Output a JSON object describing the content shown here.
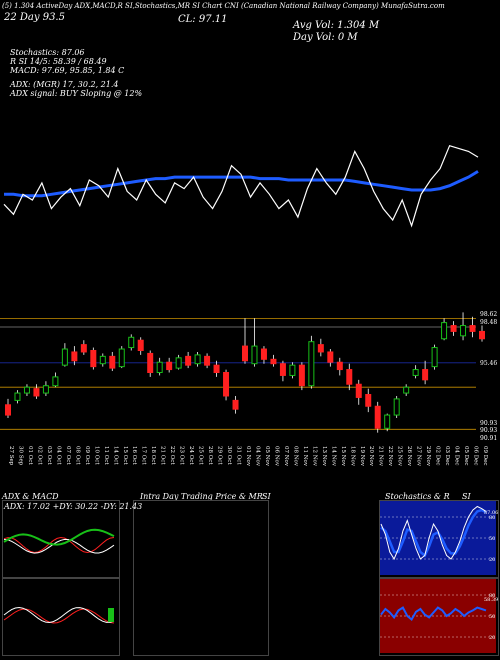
{
  "header": {
    "top_line": "(5) 1.304 ActiveDay ADX,MACD,R    SI,Stochastics,MR    SI Chart CNI    (Canadian National Railway Company) MunafaSutra.com",
    "left_row1": "22 Day  93.5",
    "cl_label": "CL: 97.11",
    "avg_vol": "Avg Vol: 1.304  M",
    "day_vol": "Day Vol: 0  M",
    "stochastics": "Stochastics: 87.06",
    "r_line": "R                      SI 14/5: 58.39 / 68.49",
    "macd": "MACD: 97.69, 95.85, 1.84  C",
    "adx": "ADX:                          (MGR) 17, 30.2, 21.4",
    "adx_signal": "ADX  signal:                                 BUY Sloping @ 12%"
  },
  "colors": {
    "background": "#000000",
    "white": "#ffffff",
    "blue": "#1e5cff",
    "red": "#ff2020",
    "green": "#18c018",
    "orange_line": "#c89000",
    "blue_line_h": "#1a2aa0",
    "white_line_h": "#c8c8c8"
  },
  "price_axis": {
    "labels": [
      "98.62",
      "98.48",
      "95.46",
      "90.93",
      "90.93",
      "90.91"
    ]
  },
  "dates": [
    "27 Sep",
    "30 Sep",
    "01 Oct",
    "02 Oct",
    "03 Oct",
    "04 Oct",
    "07 Oct",
    "08 Oct",
    "09 Oct",
    "10 Oct",
    "11 Oct",
    "14 Oct",
    "15 Oct",
    "16 Oct",
    "17 Oct",
    "18 Oct",
    "21 Oct",
    "22 Oct",
    "23 Oct",
    "24 Oct",
    "25 Oct",
    "28 Oct",
    "29 Oct",
    "30 Oct",
    "31 Oct",
    "01 Nov",
    "04 Nov",
    "05 Nov",
    "06 Nov",
    "07 Nov",
    "08 Nov",
    "11 Nov",
    "12 Nov",
    "13 Nov",
    "14 Nov",
    "15 Nov",
    "18 Nov",
    "19 Nov",
    "20 Nov",
    "21 Nov",
    "22 Nov",
    "25 Nov",
    "26 Nov",
    "27 Nov",
    "29 Nov",
    "02 Dec",
    "03 Dec",
    "04 Dec",
    "05 Dec",
    "06 Dec",
    "09 Dec"
  ],
  "panels": {
    "adx_title": "ADX  & MACD",
    "adx_values": "ADX: 17.02  +DY: 30.22  -DY: 21.43",
    "intra_title": "Intra  Day Trading Price  & MR",
    "intra_si": "SI",
    "stoch_title": "Stochastics & R",
    "stoch_si": "SI",
    "stoch_levels": [
      "80",
      "50",
      "20"
    ],
    "rsi_levels": [
      "80",
      "50",
      "20"
    ],
    "stoch_value": "87.06",
    "rsi_value": "58.39"
  },
  "chart_data": {
    "type": "candlestick",
    "title": "CNI (Canadian National Railway Company)",
    "candles": [
      {
        "o": 92.6,
        "c": 91.9,
        "h": 93.0,
        "l": 91.7
      },
      {
        "o": 92.9,
        "c": 93.4,
        "h": 93.6,
        "l": 92.7
      },
      {
        "o": 93.4,
        "c": 93.8,
        "h": 94.0,
        "l": 93.2
      },
      {
        "o": 93.7,
        "c": 93.2,
        "h": 94.0,
        "l": 93.0
      },
      {
        "o": 93.4,
        "c": 93.9,
        "h": 94.2,
        "l": 93.2
      },
      {
        "o": 93.9,
        "c": 94.5,
        "h": 94.8,
        "l": 93.8
      },
      {
        "o": 95.3,
        "c": 96.4,
        "h": 96.8,
        "l": 95.2
      },
      {
        "o": 96.2,
        "c": 95.6,
        "h": 96.6,
        "l": 95.3
      },
      {
        "o": 96.7,
        "c": 96.2,
        "h": 97.0,
        "l": 96.0
      },
      {
        "o": 96.3,
        "c": 95.2,
        "h": 96.5,
        "l": 95.0
      },
      {
        "o": 95.4,
        "c": 95.9,
        "h": 96.1,
        "l": 95.2
      },
      {
        "o": 95.9,
        "c": 95.1,
        "h": 96.2,
        "l": 94.9
      },
      {
        "o": 95.2,
        "c": 96.4,
        "h": 96.6,
        "l": 95.1
      },
      {
        "o": 96.5,
        "c": 97.2,
        "h": 97.4,
        "l": 96.3
      },
      {
        "o": 97.0,
        "c": 96.3,
        "h": 97.2,
        "l": 96.0
      },
      {
        "o": 96.1,
        "c": 94.8,
        "h": 96.3,
        "l": 94.5
      },
      {
        "o": 94.8,
        "c": 95.5,
        "h": 95.8,
        "l": 94.6
      },
      {
        "o": 95.5,
        "c": 95.0,
        "h": 95.8,
        "l": 94.8
      },
      {
        "o": 95.1,
        "c": 95.8,
        "h": 96.0,
        "l": 95.0
      },
      {
        "o": 95.9,
        "c": 95.3,
        "h": 96.2,
        "l": 95.1
      },
      {
        "o": 95.4,
        "c": 96.0,
        "h": 96.2,
        "l": 95.2
      },
      {
        "o": 95.9,
        "c": 95.3,
        "h": 96.1,
        "l": 95.1
      },
      {
        "o": 95.3,
        "c": 94.8,
        "h": 95.6,
        "l": 94.5
      },
      {
        "o": 94.8,
        "c": 93.2,
        "h": 95.0,
        "l": 92.9
      },
      {
        "o": 92.9,
        "c": 92.3,
        "h": 93.2,
        "l": 92.0
      },
      {
        "o": 96.6,
        "c": 95.6,
        "h": 98.5,
        "l": 95.4
      },
      {
        "o": 95.4,
        "c": 96.6,
        "h": 98.5,
        "l": 95.2
      },
      {
        "o": 96.4,
        "c": 95.7,
        "h": 96.6,
        "l": 95.4
      },
      {
        "o": 95.7,
        "c": 95.4,
        "h": 96.0,
        "l": 95.2
      },
      {
        "o": 95.4,
        "c": 94.6,
        "h": 95.6,
        "l": 94.2
      },
      {
        "o": 94.6,
        "c": 95.3,
        "h": 95.5,
        "l": 94.4
      },
      {
        "o": 95.3,
        "c": 93.9,
        "h": 95.5,
        "l": 93.6
      },
      {
        "o": 93.9,
        "c": 96.9,
        "h": 97.3,
        "l": 93.7
      },
      {
        "o": 96.7,
        "c": 96.2,
        "h": 97.1,
        "l": 95.9
      },
      {
        "o": 96.2,
        "c": 95.5,
        "h": 96.4,
        "l": 95.2
      },
      {
        "o": 95.5,
        "c": 95.0,
        "h": 95.8,
        "l": 94.6
      },
      {
        "o": 95.0,
        "c": 94.0,
        "h": 95.4,
        "l": 93.6
      },
      {
        "o": 94.0,
        "c": 93.1,
        "h": 94.3,
        "l": 92.6
      },
      {
        "o": 93.3,
        "c": 92.5,
        "h": 93.7,
        "l": 92.1
      },
      {
        "o": 92.5,
        "c": 91.0,
        "h": 92.8,
        "l": 90.7
      },
      {
        "o": 91.0,
        "c": 91.9,
        "h": 92.0,
        "l": 90.8
      },
      {
        "o": 91.9,
        "c": 93.0,
        "h": 93.2,
        "l": 91.7
      },
      {
        "o": 93.4,
        "c": 93.8,
        "h": 94.0,
        "l": 93.2
      },
      {
        "o": 94.6,
        "c": 95.0,
        "h": 95.3,
        "l": 94.4
      },
      {
        "o": 95.0,
        "c": 94.3,
        "h": 95.6,
        "l": 94.0
      },
      {
        "o": 95.2,
        "c": 96.5,
        "h": 96.7,
        "l": 95.0
      },
      {
        "o": 97.1,
        "c": 98.2,
        "h": 98.5,
        "l": 97.0
      },
      {
        "o": 98.0,
        "c": 97.6,
        "h": 98.3,
        "l": 97.3
      },
      {
        "o": 97.3,
        "c": 98.0,
        "h": 98.9,
        "l": 97.0
      },
      {
        "o": 98.0,
        "c": 97.6,
        "h": 98.6,
        "l": 97.2
      },
      {
        "o": 97.6,
        "c": 97.1,
        "h": 98.0,
        "l": 96.9
      }
    ],
    "reference_lines": [
      98.48,
      95.46,
      93.8,
      90.93
    ],
    "indicator_top": {
      "white_series": [
        55,
        48,
        62,
        58,
        70,
        52,
        60,
        66,
        54,
        72,
        68,
        60,
        80,
        64,
        58,
        72,
        62,
        56,
        70,
        66,
        74,
        60,
        52,
        64,
        82,
        76,
        60,
        70,
        62,
        52,
        58,
        46,
        66,
        80,
        70,
        62,
        74,
        92,
        80,
        64,
        52,
        44,
        58,
        40,
        62,
        72,
        80,
        96,
        94,
        92,
        88
      ],
      "blue_series": [
        62,
        62,
        61,
        61,
        61,
        62,
        63,
        64,
        65,
        66,
        67,
        68,
        69,
        70,
        71,
        72,
        73,
        73,
        74,
        74,
        74,
        74,
        74,
        74,
        74,
        74,
        74,
        73,
        73,
        73,
        72,
        72,
        72,
        72,
        72,
        72,
        72,
        71,
        70,
        69,
        68,
        67,
        66,
        65,
        65,
        65,
        66,
        68,
        71,
        74,
        78
      ]
    },
    "adx_panel": {
      "adx": 17.02,
      "plus_di": 30.22,
      "minus_di": 21.43
    },
    "stochastics_panel": {
      "stoch": 87.06,
      "levels": [
        80,
        50,
        20
      ],
      "white_series": [
        70,
        55,
        30,
        20,
        35,
        60,
        75,
        55,
        35,
        20,
        25,
        50,
        70,
        60,
        40,
        25,
        20,
        30,
        45,
        65,
        80,
        90,
        95,
        92,
        88
      ],
      "blue_series": [
        65,
        60,
        45,
        30,
        30,
        45,
        62,
        60,
        45,
        30,
        25,
        38,
        55,
        58,
        48,
        35,
        28,
        28,
        38,
        52,
        68,
        80,
        88,
        90,
        87
      ]
    },
    "rsi_panel": {
      "rsi": 58.39,
      "levels": [
        80,
        50,
        20
      ],
      "series": [
        52,
        60,
        55,
        48,
        58,
        62,
        50,
        45,
        56,
        60,
        52,
        48,
        55,
        62,
        58,
        50,
        54,
        60,
        56,
        50,
        55,
        58,
        62,
        60,
        58
      ]
    }
  }
}
